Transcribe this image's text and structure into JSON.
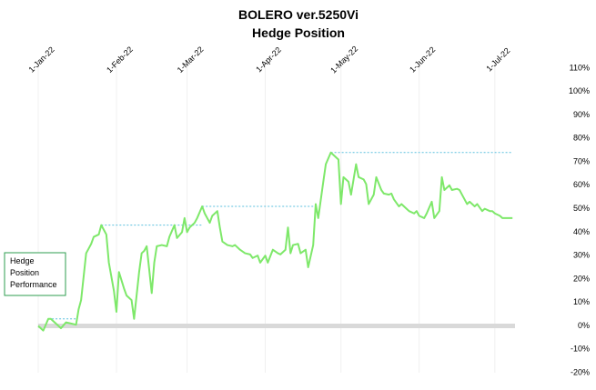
{
  "chart_data": {
    "type": "line",
    "title": "BOLERO ver.5250Vi",
    "subtitle": "Hedge Position",
    "annotation": [
      "Hedge",
      "Position",
      "Performance"
    ],
    "xlim": [
      "2022-01-01",
      "2022-07-09"
    ],
    "xticks": [
      {
        "value": "2022-01-01",
        "label": "1-Jan-22"
      },
      {
        "value": "2022-02-01",
        "label": "1-Feb-22"
      },
      {
        "value": "2022-03-01",
        "label": "1-Mar-22"
      },
      {
        "value": "2022-04-01",
        "label": "1-Apr-22"
      },
      {
        "value": "2022-05-01",
        "label": "1-May-22"
      },
      {
        "value": "2022-06-01",
        "label": "1-Jun-22"
      },
      {
        "value": "2022-07-01",
        "label": "1-Jul-22"
      }
    ],
    "ylim": [
      -20,
      110
    ],
    "yticks": [
      {
        "value": -20,
        "label": "-20%"
      },
      {
        "value": -10,
        "label": "-10%"
      },
      {
        "value": 0,
        "label": "0%"
      },
      {
        "value": 10,
        "label": "10%"
      },
      {
        "value": 20,
        "label": "20%"
      },
      {
        "value": 30,
        "label": "30%"
      },
      {
        "value": 40,
        "label": "40%"
      },
      {
        "value": 50,
        "label": "50%"
      },
      {
        "value": 60,
        "label": "60%"
      },
      {
        "value": 70,
        "label": "70%"
      },
      {
        "value": 80,
        "label": "80%"
      },
      {
        "value": 90,
        "label": "90%"
      },
      {
        "value": 100,
        "label": "100%"
      },
      {
        "value": 110,
        "label": "110%"
      }
    ],
    "x_grid": true,
    "zero_line": true,
    "reference_color": "#5bc0de",
    "reference_lines": [
      {
        "x": [
          "2022-01-05",
          "2022-01-16"
        ],
        "y": 3
      },
      {
        "x": [
          "2022-01-26",
          "2022-03-07"
        ],
        "y": 43
      },
      {
        "x": [
          "2022-03-07",
          "2022-04-21"
        ],
        "y": 51
      },
      {
        "x": [
          "2022-04-27",
          "2022-07-08"
        ],
        "y": 74
      }
    ],
    "color": "#7ee86a",
    "x": [
      "2022-01-01",
      "2022-01-03",
      "2022-01-05",
      "2022-01-06",
      "2022-01-08",
      "2022-01-10",
      "2022-01-12",
      "2022-01-14",
      "2022-01-16",
      "2022-01-17",
      "2022-01-18",
      "2022-01-20",
      "2022-01-21",
      "2022-01-22",
      "2022-01-23",
      "2022-01-25",
      "2022-01-26",
      "2022-01-28",
      "2022-01-29",
      "2022-01-31",
      "2022-02-01",
      "2022-02-02",
      "2022-02-04",
      "2022-02-05",
      "2022-02-07",
      "2022-02-08",
      "2022-02-10",
      "2022-02-11",
      "2022-02-12",
      "2022-02-13",
      "2022-02-15",
      "2022-02-16",
      "2022-02-17",
      "2022-02-19",
      "2022-02-21",
      "2022-02-22",
      "2022-02-24",
      "2022-02-25",
      "2022-02-27",
      "2022-02-28",
      "2022-03-01",
      "2022-03-02",
      "2022-03-04",
      "2022-03-05",
      "2022-03-07",
      "2022-03-08",
      "2022-03-10",
      "2022-03-11",
      "2022-03-13",
      "2022-03-14",
      "2022-03-15",
      "2022-03-17",
      "2022-03-19",
      "2022-03-20",
      "2022-03-22",
      "2022-03-24",
      "2022-03-26",
      "2022-03-27",
      "2022-03-29",
      "2022-03-30",
      "2022-04-01",
      "2022-04-02",
      "2022-04-04",
      "2022-04-06",
      "2022-04-07",
      "2022-04-09",
      "2022-04-10",
      "2022-04-11",
      "2022-04-12",
      "2022-04-14",
      "2022-04-15",
      "2022-04-17",
      "2022-04-18",
      "2022-04-20",
      "2022-04-21",
      "2022-04-22",
      "2022-04-24",
      "2022-04-25",
      "2022-04-27",
      "2022-04-28",
      "2022-04-30",
      "2022-05-01",
      "2022-05-02",
      "2022-05-04",
      "2022-05-05",
      "2022-05-07",
      "2022-05-08",
      "2022-05-10",
      "2022-05-11",
      "2022-05-12",
      "2022-05-14",
      "2022-05-15",
      "2022-05-17",
      "2022-05-18",
      "2022-05-20",
      "2022-05-21",
      "2022-05-22",
      "2022-05-24",
      "2022-05-25",
      "2022-05-27",
      "2022-05-28",
      "2022-05-30",
      "2022-05-31",
      "2022-06-01",
      "2022-06-03",
      "2022-06-04",
      "2022-06-06",
      "2022-06-07",
      "2022-06-09",
      "2022-06-10",
      "2022-06-11",
      "2022-06-13",
      "2022-06-14",
      "2022-06-16",
      "2022-06-17",
      "2022-06-19",
      "2022-06-20",
      "2022-06-21",
      "2022-06-23",
      "2022-06-24",
      "2022-06-26",
      "2022-06-27",
      "2022-06-29",
      "2022-06-30",
      "2022-07-01",
      "2022-07-03",
      "2022-07-04",
      "2022-07-06",
      "2022-07-08"
    ],
    "values": [
      0,
      -2,
      3,
      3,
      1,
      -1,
      1.5,
      1,
      0.5,
      7,
      11,
      31,
      33,
      35,
      38,
      39,
      43,
      39,
      27,
      15,
      6,
      23,
      16,
      13,
      11,
      3,
      23,
      31,
      32,
      34,
      14,
      27,
      34,
      34.5,
      34,
      38,
      43,
      37.5,
      40,
      46,
      40,
      42,
      44,
      46,
      51,
      48,
      44,
      47,
      49,
      42,
      36,
      34.5,
      34,
      34.5,
      32.5,
      31,
      30.5,
      29,
      30,
      27,
      30,
      27,
      32.5,
      31,
      30.5,
      32.5,
      42,
      31,
      34.5,
      35,
      31,
      32.5,
      25,
      34.5,
      52,
      46,
      61.5,
      69,
      74,
      73,
      71,
      52,
      63.5,
      61.5,
      56,
      69,
      63.5,
      62.5,
      60.5,
      52,
      56,
      63.5,
      58,
      56.5,
      56,
      56.5,
      54,
      51,
      52,
      50,
      49,
      48,
      49,
      47,
      46,
      48,
      53,
      46,
      49,
      63.5,
      58,
      60,
      58,
      58.5,
      58,
      54,
      52,
      53,
      51,
      52,
      49,
      50,
      49,
      49,
      48,
      47,
      46,
      46,
      46
    ]
  }
}
